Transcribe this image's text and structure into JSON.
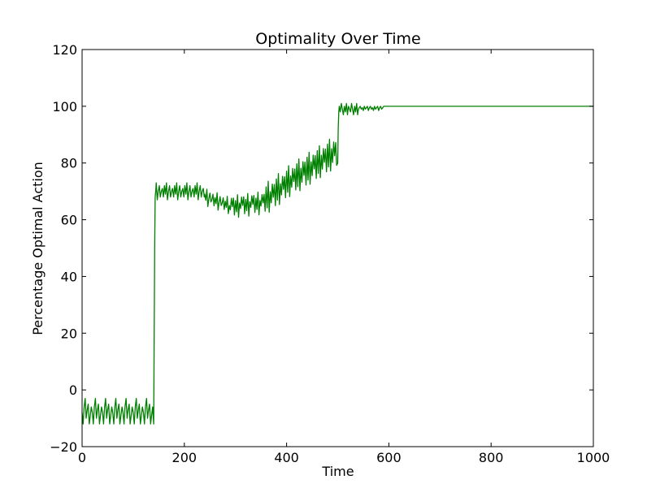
{
  "chart_data": {
    "type": "line",
    "title": "Optimality Over Time",
    "xlabel": "Time",
    "ylabel": "Percentage Optimal Action",
    "xlim": [
      0,
      1000
    ],
    "ylim": [
      -20,
      120
    ],
    "xticks": [
      0,
      200,
      400,
      600,
      800,
      1000
    ],
    "yticks": [
      -20,
      0,
      20,
      40,
      60,
      80,
      100,
      120
    ],
    "xtick_labels": [
      "0",
      "200",
      "400",
      "600",
      "800",
      "1000"
    ],
    "ytick_labels": [
      "−20",
      "0",
      "20",
      "40",
      "60",
      "80",
      "100",
      "120"
    ],
    "grid": false,
    "legend": "none",
    "series": [
      {
        "color": "#008000",
        "segments": [
          {
            "x_start": 0,
            "x_end": 140,
            "step": 2,
            "base": -8.5,
            "noise": 3,
            "pattern": [
              -8,
              -12,
              -6,
              -3,
              -10,
              -7,
              -5,
              -12,
              -9,
              -6
            ]
          },
          {
            "x_start": 140,
            "x_end": 145,
            "step": 1,
            "base": 69,
            "noise": 0,
            "pattern": [
              -12,
              20,
              50,
              68,
              70
            ]
          },
          {
            "x_start": 145,
            "x_end": 240,
            "step": 2,
            "base": 70,
            "noise": 3,
            "pattern": [
              0,
              1,
              -2,
              2,
              -1,
              3,
              -3,
              0,
              2,
              -2
            ]
          },
          {
            "x_start": 240,
            "x_end": 290,
            "step": 2,
            "base_from": 68,
            "base_to": 65,
            "noise": 3,
            "pattern": [
              0,
              2,
              -2,
              1,
              -1,
              3,
              -3,
              0,
              2,
              -1
            ]
          },
          {
            "x_start": 290,
            "x_end": 360,
            "step": 2,
            "base_from": 64.5,
            "base_to": 66,
            "noise": 4,
            "pattern": [
              0,
              3,
              -3,
              2,
              -2,
              4,
              -4,
              1,
              -1,
              3
            ]
          },
          {
            "x_start": 360,
            "x_end": 420,
            "step": 2,
            "base_from": 66,
            "base_to": 74,
            "noise": 7,
            "pattern": [
              0,
              6,
              -5,
              8,
              -3,
              10,
              -6,
              4,
              -2,
              7
            ]
          },
          {
            "x_start": 420,
            "x_end": 500,
            "step": 2,
            "base_from": 74,
            "base_to": 83,
            "noise": 7,
            "pattern": [
              0,
              7,
              -6,
              9,
              -4,
              11,
              -7,
              5,
              -3,
              8
            ]
          },
          {
            "x_start": 500,
            "x_end": 505,
            "step": 1,
            "base": 99,
            "noise": 0,
            "pattern": [
              80,
              92,
              98,
              100,
              99
            ]
          },
          {
            "x_start": 505,
            "x_end": 540,
            "step": 2,
            "base": 99,
            "noise": 2,
            "pattern": [
              0,
              -2,
              1,
              -1,
              2,
              -2,
              1,
              0,
              -1,
              2
            ]
          },
          {
            "x_start": 540,
            "x_end": 590,
            "step": 2,
            "base": 99.5,
            "noise": 1,
            "pattern": [
              0,
              -1,
              0.5,
              -0.5,
              0,
              0.5,
              -1,
              0,
              0.5,
              -0.5
            ]
          },
          {
            "x_start": 590,
            "x_end": 1000,
            "step": 10,
            "base": 100,
            "noise": 0,
            "pattern": [
              0
            ]
          }
        ]
      }
    ]
  }
}
